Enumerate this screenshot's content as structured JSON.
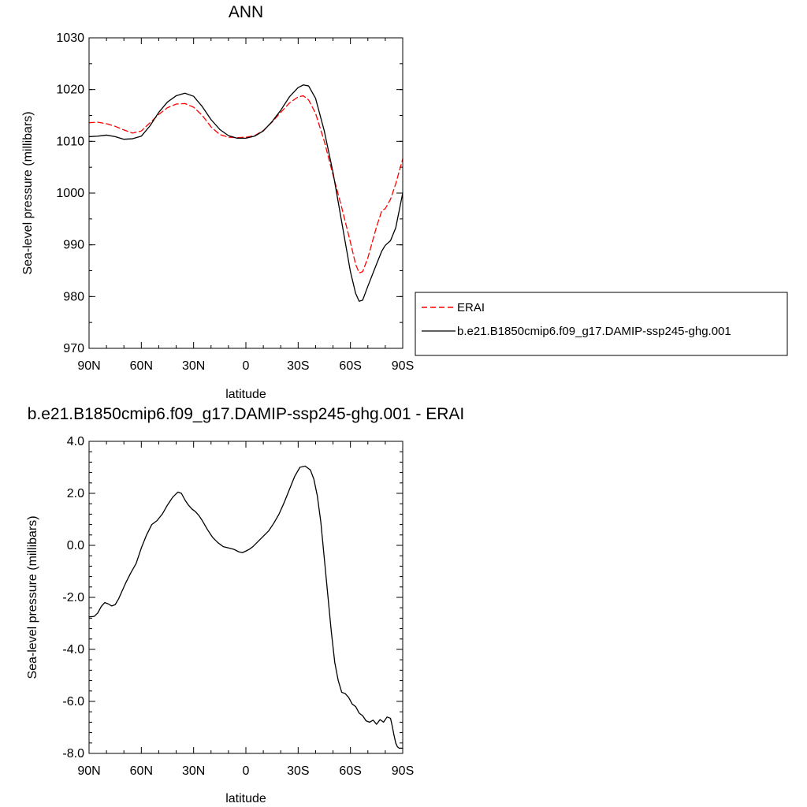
{
  "chart_data": [
    {
      "type": "line",
      "title": "ANN",
      "xlabel": "latitude",
      "ylabel": "Sea-level pressure (millibars)",
      "xlim": [
        90,
        -90
      ],
      "ylim": [
        970,
        1030
      ],
      "x_ticks": [
        {
          "value": 90,
          "label": "90N"
        },
        {
          "value": 60,
          "label": "60N"
        },
        {
          "value": 30,
          "label": "30N"
        },
        {
          "value": 0,
          "label": "0"
        },
        {
          "value": -30,
          "label": "30S"
        },
        {
          "value": -60,
          "label": "60S"
        },
        {
          "value": -90,
          "label": "90S"
        }
      ],
      "y_ticks": [
        {
          "value": 970,
          "label": "970"
        },
        {
          "value": 980,
          "label": "980"
        },
        {
          "value": 990,
          "label": "990"
        },
        {
          "value": 1000,
          "label": "1000"
        },
        {
          "value": 1010,
          "label": "1010"
        },
        {
          "value": 1020,
          "label": "1020"
        },
        {
          "value": 1030,
          "label": "1030"
        }
      ],
      "legend_position": "right",
      "series": [
        {
          "name": "ERAI",
          "color": "#ff0000",
          "dash": "dashed",
          "x": [
            90,
            85,
            80,
            75,
            70,
            65,
            60,
            55,
            50,
            45,
            40,
            35,
            30,
            25,
            20,
            15,
            10,
            5,
            0,
            -5,
            -10,
            -15,
            -20,
            -25,
            -30,
            -33,
            -36,
            -40,
            -45,
            -50,
            -55,
            -60,
            -63,
            -65,
            -67,
            -70,
            -75,
            -78,
            -80,
            -83,
            -86,
            -90
          ],
          "y": [
            1013.6,
            1013.7,
            1013.4,
            1012.9,
            1012.2,
            1011.6,
            1012.0,
            1013.6,
            1015.2,
            1016.5,
            1017.2,
            1017.3,
            1016.6,
            1015.0,
            1012.8,
            1011.3,
            1010.8,
            1010.7,
            1010.8,
            1011.1,
            1012.1,
            1013.7,
            1015.6,
            1017.4,
            1018.6,
            1018.8,
            1018.0,
            1015.4,
            1010.0,
            1003.5,
            997.2,
            990.5,
            986.2,
            984.6,
            984.8,
            987.5,
            993.5,
            996.6,
            997.0,
            998.8,
            1001.8,
            1006.6
          ]
        },
        {
          "name": "b.e21.B1850cmip6.f09_g17.DAMIP-ssp245-ghg.001",
          "color": "#000000",
          "dash": "solid",
          "x": [
            90,
            85,
            80,
            75,
            70,
            65,
            60,
            55,
            50,
            45,
            40,
            35,
            30,
            25,
            20,
            15,
            10,
            5,
            0,
            -5,
            -10,
            -15,
            -20,
            -25,
            -30,
            -33,
            -36,
            -40,
            -45,
            -50,
            -55,
            -60,
            -63,
            -65,
            -67,
            -70,
            -75,
            -78,
            -80,
            -83,
            -86,
            -90
          ],
          "y": [
            1010.9,
            1011.0,
            1011.2,
            1010.9,
            1010.4,
            1010.5,
            1011.0,
            1013.0,
            1015.6,
            1017.6,
            1018.8,
            1019.3,
            1018.7,
            1016.7,
            1014.2,
            1012.3,
            1011.1,
            1010.6,
            1010.6,
            1011.0,
            1012.0,
            1013.8,
            1016.0,
            1018.6,
            1020.4,
            1020.9,
            1020.7,
            1018.3,
            1012.0,
            1004.0,
            994.4,
            984.8,
            980.6,
            979.1,
            979.3,
            982.0,
            986.3,
            988.8,
            989.9,
            990.8,
            993.3,
            1000.0
          ]
        }
      ]
    },
    {
      "type": "line",
      "title": "b.e21.B1850cmip6.f09_g17.DAMIP-ssp245-ghg.001 - ERAI",
      "xlabel": "latitude",
      "ylabel": "Sea-level pressure (millibars)",
      "xlim": [
        90,
        -90
      ],
      "ylim": [
        -8.0,
        4.0
      ],
      "x_ticks": [
        {
          "value": 90,
          "label": "90N"
        },
        {
          "value": 60,
          "label": "60N"
        },
        {
          "value": 30,
          "label": "30N"
        },
        {
          "value": 0,
          "label": "0"
        },
        {
          "value": -30,
          "label": "30S"
        },
        {
          "value": -60,
          "label": "60S"
        },
        {
          "value": -90,
          "label": "90S"
        }
      ],
      "y_ticks": [
        {
          "value": -8.0,
          "label": "-8.0"
        },
        {
          "value": -6.0,
          "label": "-6.0"
        },
        {
          "value": -4.0,
          "label": "-4.0"
        },
        {
          "value": -2.0,
          "label": "-2.0"
        },
        {
          "value": 0.0,
          "label": "0.0"
        },
        {
          "value": 2.0,
          "label": "2.0"
        },
        {
          "value": 4.0,
          "label": "4.0"
        }
      ],
      "series": [
        {
          "color": "#000000",
          "dash": "solid",
          "x": [
            90,
            87,
            85,
            83,
            81,
            79,
            77,
            75,
            73,
            71,
            69,
            66,
            63,
            60,
            57,
            54,
            51,
            48,
            45,
            42,
            39,
            37,
            35,
            33,
            31,
            29,
            27,
            25,
            22,
            19,
            16,
            13,
            10,
            7,
            4,
            2,
            0,
            -2,
            -4,
            -7,
            -10,
            -13,
            -16,
            -19,
            -22,
            -25,
            -28,
            -31,
            -34,
            -37,
            -39,
            -41,
            -43,
            -45,
            -47,
            -49,
            -51,
            -53,
            -55,
            -57,
            -59,
            -61,
            -63,
            -65,
            -67,
            -69,
            -71,
            -73,
            -75,
            -77,
            -79,
            -81,
            -83,
            -84,
            -85,
            -86,
            -87,
            -88,
            -89,
            -90
          ],
          "y": [
            -2.75,
            -2.73,
            -2.6,
            -2.35,
            -2.2,
            -2.25,
            -2.33,
            -2.28,
            -2.05,
            -1.75,
            -1.45,
            -1.05,
            -0.7,
            -0.1,
            0.4,
            0.8,
            0.95,
            1.2,
            1.55,
            1.85,
            2.05,
            2.0,
            1.75,
            1.55,
            1.4,
            1.3,
            1.15,
            0.95,
            0.6,
            0.3,
            0.1,
            -0.05,
            -0.1,
            -0.15,
            -0.25,
            -0.28,
            -0.22,
            -0.15,
            -0.05,
            0.15,
            0.35,
            0.55,
            0.85,
            1.2,
            1.65,
            2.15,
            2.65,
            3.0,
            3.05,
            2.9,
            2.55,
            1.9,
            0.9,
            -0.5,
            -1.9,
            -3.3,
            -4.5,
            -5.2,
            -5.65,
            -5.7,
            -5.85,
            -6.1,
            -6.2,
            -6.45,
            -6.55,
            -6.75,
            -6.8,
            -6.72,
            -6.88,
            -6.7,
            -6.8,
            -6.6,
            -6.65,
            -6.95,
            -7.3,
            -7.6,
            -7.75,
            -7.8,
            -7.8,
            -7.8
          ]
        }
      ]
    }
  ]
}
